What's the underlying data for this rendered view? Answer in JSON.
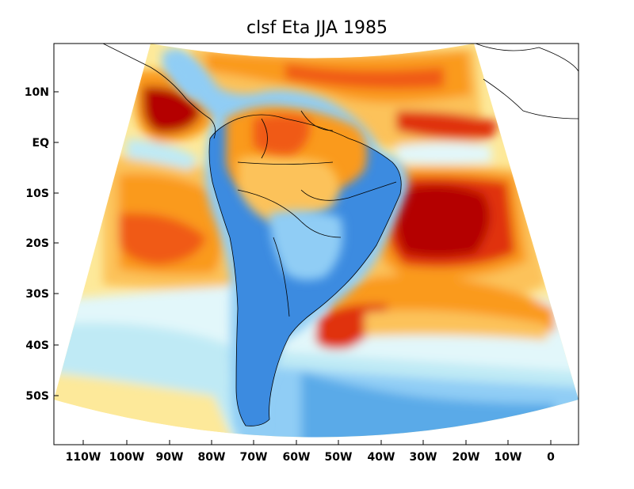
{
  "title": "clsf Eta JJA 1985",
  "axes": {
    "y_ticks": [
      "10N",
      "EQ",
      "10S",
      "20S",
      "30S",
      "40S",
      "50S"
    ],
    "x_ticks": [
      "110W",
      "100W",
      "90W",
      "80W",
      "70W",
      "60W",
      "50W",
      "40W",
      "30W",
      "20W",
      "10W",
      "0"
    ]
  },
  "colors": {
    "dark_red": "#b40000",
    "red": "#e03010",
    "orange_red": "#f05a14",
    "orange": "#fa9a1e",
    "light_orange": "#fcc25a",
    "pale_yellow": "#fde99a",
    "pale_cyan": "#e2f7fa",
    "light_cyan": "#bfeaf5",
    "light_blue": "#90cdf5",
    "blue": "#5aaae8",
    "mid_blue": "#3c8be0",
    "land_line": "#000000"
  }
}
